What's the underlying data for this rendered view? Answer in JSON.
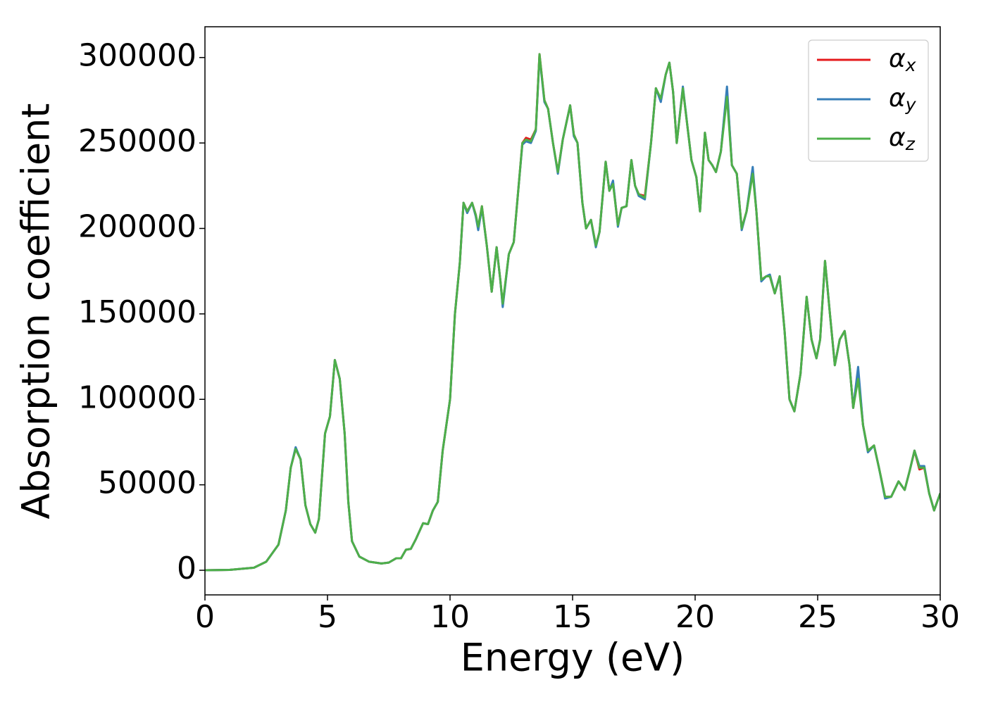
{
  "chart_data": {
    "type": "line",
    "xlabel": "Energy (eV)",
    "ylabel": "Absorption coefficient",
    "x": [
      0,
      1,
      2,
      2.5,
      3,
      3.3,
      3.5,
      3.7,
      3.9,
      4.1,
      4.3,
      4.5,
      4.65,
      4.8,
      4.9,
      5.1,
      5.3,
      5.5,
      5.7,
      5.85,
      6.0,
      6.3,
      6.7,
      7.2,
      7.5,
      7.8,
      8.0,
      8.2,
      8.4,
      8.6,
      8.9,
      9.1,
      9.3,
      9.5,
      9.7,
      10.0,
      10.2,
      10.4,
      10.55,
      10.7,
      10.9,
      11.05,
      11.15,
      11.3,
      11.5,
      11.7,
      11.9,
      12.05,
      12.15,
      12.4,
      12.6,
      12.8,
      12.95,
      13.1,
      13.3,
      13.5,
      13.65,
      13.85,
      14.0,
      14.2,
      14.4,
      14.6,
      14.75,
      14.9,
      15.05,
      15.2,
      15.4,
      15.55,
      15.75,
      15.95,
      16.1,
      16.35,
      16.5,
      16.65,
      16.85,
      17.0,
      17.2,
      17.4,
      17.55,
      17.7,
      17.95,
      18.2,
      18.4,
      18.6,
      18.8,
      18.95,
      19.1,
      19.25,
      19.5,
      19.7,
      19.85,
      20.05,
      20.2,
      20.4,
      20.55,
      20.7,
      20.85,
      21.05,
      21.3,
      21.5,
      21.7,
      21.9,
      22.1,
      22.35,
      22.5,
      22.7,
      22.9,
      23.05,
      23.25,
      23.45,
      23.65,
      23.85,
      24.05,
      24.3,
      24.55,
      24.75,
      24.95,
      25.1,
      25.3,
      25.5,
      25.7,
      25.9,
      26.1,
      26.3,
      26.45,
      26.65,
      26.85,
      27.05,
      27.3,
      27.5,
      27.75,
      28.0,
      28.3,
      28.55,
      28.75,
      28.95,
      29.15,
      29.35,
      29.55,
      29.75,
      30.0
    ],
    "series": [
      {
        "name": "αx",
        "color": "#e41a1c",
        "values": [
          0,
          200,
          1500,
          5000,
          15000,
          35000,
          60000,
          71000,
          65000,
          38000,
          27000,
          22000,
          30000,
          60000,
          80000,
          90000,
          123000,
          112000,
          80000,
          40000,
          17000,
          8000,
          5000,
          4000,
          4500,
          7000,
          7000,
          12000,
          12500,
          18000,
          27500,
          27000,
          35000,
          40000,
          70000,
          100000,
          150000,
          180000,
          215000,
          210000,
          215000,
          208000,
          200000,
          213000,
          190000,
          163000,
          189000,
          170000,
          155000,
          185000,
          192000,
          225000,
          250000,
          253000,
          252000,
          258000,
          302000,
          275000,
          270000,
          250000,
          233000,
          252000,
          262000,
          272000,
          255000,
          250000,
          215000,
          200000,
          205000,
          190000,
          198000,
          239000,
          222000,
          227000,
          202000,
          212000,
          213000,
          240000,
          225000,
          220000,
          219000,
          250000,
          282000,
          275000,
          290000,
          297000,
          280000,
          250000,
          282000,
          258000,
          240000,
          230000,
          210000,
          256000,
          240000,
          237000,
          233000,
          245000,
          281000,
          237000,
          232000,
          200000,
          210000,
          234000,
          210000,
          170000,
          172000,
          172000,
          162000,
          172000,
          140000,
          100000,
          93000,
          115000,
          160000,
          135000,
          124000,
          135000,
          181000,
          150000,
          120000,
          135000,
          140000,
          120000,
          95000,
          116000,
          85000,
          70000,
          73000,
          60000,
          43000,
          43000,
          52000,
          47000,
          58000,
          70000,
          59000,
          60000,
          45000,
          35000,
          45000
        ]
      },
      {
        "name": "αy",
        "color": "#377eb8",
        "values": [
          0,
          200,
          1500,
          5000,
          15000,
          35000,
          60000,
          72000,
          65000,
          38000,
          27000,
          22000,
          30000,
          60000,
          80000,
          90000,
          123000,
          112000,
          80000,
          40000,
          17000,
          8000,
          5000,
          4000,
          4500,
          7000,
          7000,
          12000,
          12500,
          18000,
          27500,
          27000,
          35000,
          40000,
          70000,
          100000,
          150000,
          180000,
          215000,
          209000,
          215000,
          207000,
          199000,
          212000,
          190000,
          163000,
          189000,
          170000,
          154000,
          185000,
          192000,
          225000,
          249000,
          251000,
          250000,
          257000,
          301000,
          274000,
          270000,
          250000,
          232000,
          252000,
          262000,
          272000,
          254000,
          250000,
          215000,
          200000,
          205000,
          189000,
          198000,
          239000,
          222000,
          228000,
          201000,
          212000,
          213000,
          240000,
          225000,
          219000,
          217000,
          250000,
          282000,
          274000,
          290000,
          297000,
          280000,
          250000,
          283000,
          258000,
          240000,
          230000,
          210000,
          256000,
          240000,
          237000,
          233000,
          245000,
          283000,
          237000,
          232000,
          199000,
          210000,
          236000,
          210000,
          169000,
          172000,
          173000,
          162000,
          172000,
          140000,
          100000,
          93000,
          115000,
          160000,
          135000,
          124000,
          135000,
          181000,
          150000,
          120000,
          135000,
          140000,
          120000,
          95000,
          119000,
          85000,
          69000,
          73000,
          60000,
          42000,
          43000,
          52000,
          47000,
          58000,
          70000,
          61000,
          61000,
          45000,
          35000,
          45000
        ]
      },
      {
        "name": "αz",
        "color": "#4daf4a",
        "values": [
          0,
          200,
          1500,
          5000,
          15000,
          35000,
          60000,
          71000,
          65000,
          38000,
          27000,
          22000,
          30000,
          60000,
          80000,
          90000,
          123000,
          112000,
          80000,
          40000,
          17000,
          8000,
          5000,
          4000,
          4500,
          7000,
          7000,
          12000,
          12500,
          18000,
          27500,
          27000,
          35000,
          40000,
          70000,
          100000,
          150000,
          180000,
          215000,
          210000,
          215000,
          208000,
          201000,
          213000,
          190000,
          163000,
          189000,
          170000,
          156000,
          185000,
          192000,
          225000,
          250000,
          252000,
          251000,
          258000,
          302000,
          275000,
          270000,
          250000,
          233000,
          252000,
          262000,
          272000,
          255000,
          250000,
          215000,
          200000,
          205000,
          190000,
          198000,
          239000,
          222000,
          226000,
          202000,
          212000,
          213000,
          240000,
          225000,
          220000,
          218000,
          250000,
          282000,
          276000,
          290000,
          297000,
          280000,
          250000,
          282000,
          258000,
          240000,
          230000,
          210000,
          256000,
          240000,
          237000,
          233000,
          245000,
          277000,
          237000,
          232000,
          200000,
          210000,
          232000,
          210000,
          170000,
          172000,
          172000,
          162000,
          172000,
          140000,
          100000,
          93000,
          115000,
          160000,
          135000,
          124000,
          135000,
          181000,
          150000,
          120000,
          135000,
          140000,
          120000,
          95000,
          112000,
          85000,
          70000,
          73000,
          60000,
          43000,
          43000,
          52000,
          47000,
          58000,
          70000,
          60000,
          60000,
          45000,
          35000,
          45000
        ]
      }
    ],
    "xlim": [
      0,
      30
    ],
    "xticks": [
      0,
      5,
      10,
      15,
      20,
      25,
      30
    ],
    "ylim": [
      -14400,
      318000
    ],
    "yticks": [
      0,
      50000,
      100000,
      150000,
      200000,
      250000,
      300000
    ],
    "legend": "upper right"
  }
}
